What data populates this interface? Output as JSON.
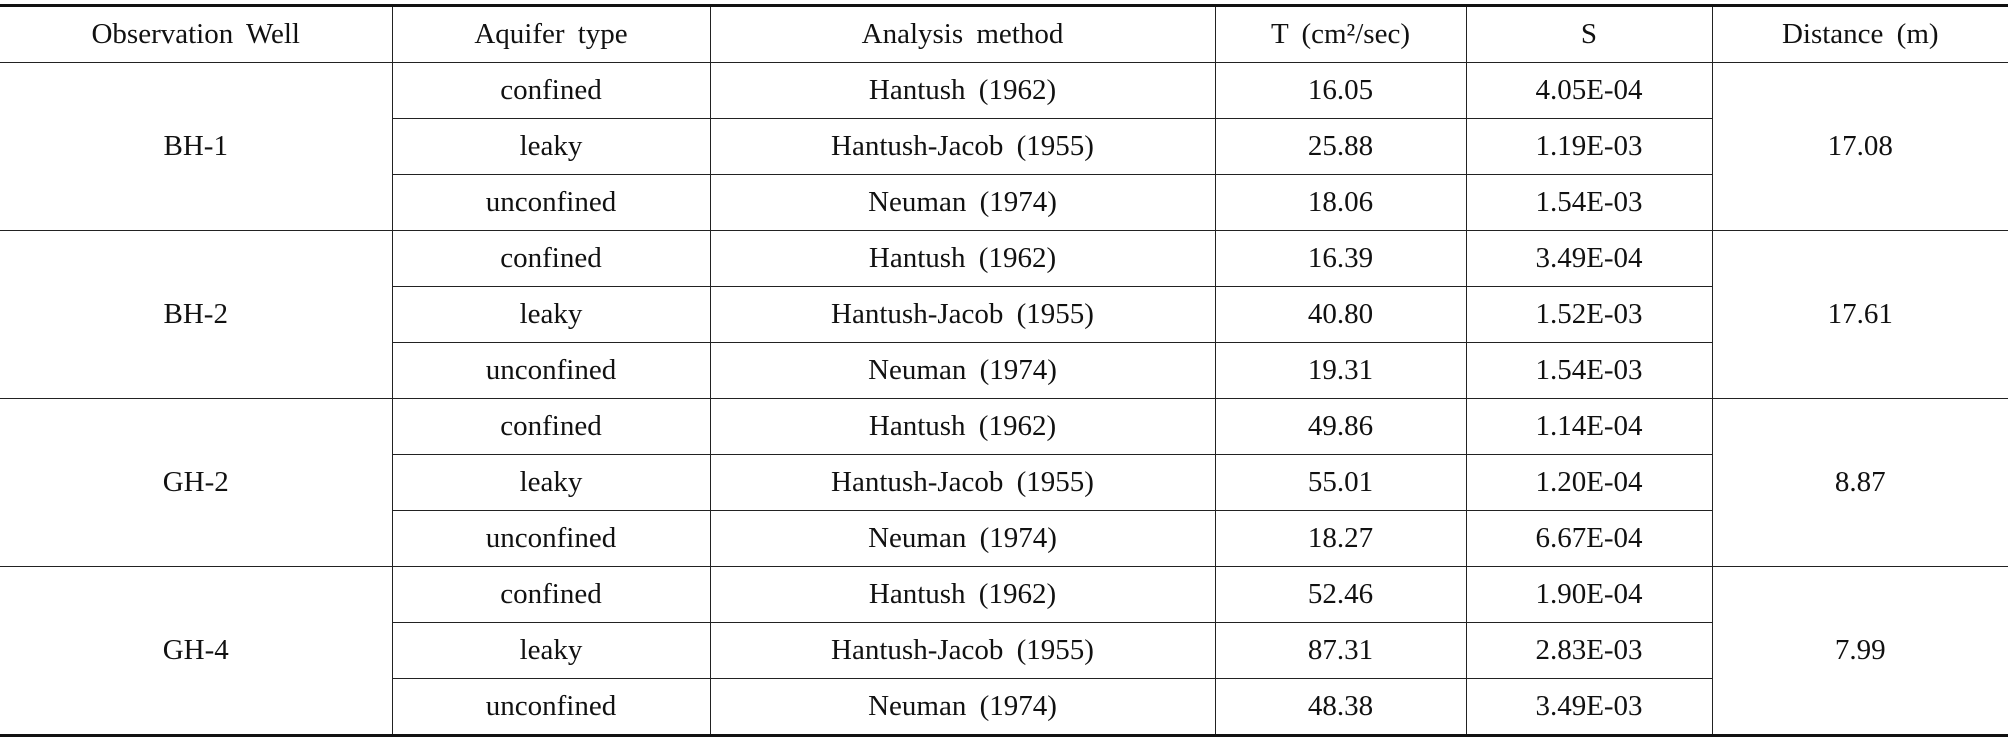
{
  "table": {
    "header": [
      "Observation Well",
      "Aquifer type",
      "Analysis method",
      "T (cm²/sec)",
      "S",
      "Distance (m)"
    ],
    "groups": [
      {
        "well": "BH-1",
        "distance": "17.08",
        "rows": [
          [
            "confined",
            "Hantush (1962)",
            "16.05",
            "4.05E-04"
          ],
          [
            "leaky",
            "Hantush-Jacob (1955)",
            "25.88",
            "1.19E-03"
          ],
          [
            "unconfined",
            "Neuman (1974)",
            "18.06",
            "1.54E-03"
          ]
        ]
      },
      {
        "well": "BH-2",
        "distance": "17.61",
        "rows": [
          [
            "confined",
            "Hantush (1962)",
            "16.39",
            "3.49E-04"
          ],
          [
            "leaky",
            "Hantush-Jacob (1955)",
            "40.80",
            "1.52E-03"
          ],
          [
            "unconfined",
            "Neuman (1974)",
            "19.31",
            "1.54E-03"
          ]
        ]
      },
      {
        "well": "GH-2",
        "distance": "8.87",
        "rows": [
          [
            "confined",
            "Hantush (1962)",
            "49.86",
            "1.14E-04"
          ],
          [
            "leaky",
            "Hantush-Jacob (1955)",
            "55.01",
            "1.20E-04"
          ],
          [
            "unconfined",
            "Neuman (1974)",
            "18.27",
            "6.67E-04"
          ]
        ]
      },
      {
        "well": "GH-4",
        "distance": "7.99",
        "rows": [
          [
            "confined",
            "Hantush (1962)",
            "52.46",
            "1.90E-04"
          ],
          [
            "leaky",
            "Hantush-Jacob (1955)",
            "87.31",
            "2.83E-03"
          ],
          [
            "unconfined",
            "Neuman (1974)",
            "48.38",
            "3.49E-03"
          ]
        ]
      }
    ]
  }
}
